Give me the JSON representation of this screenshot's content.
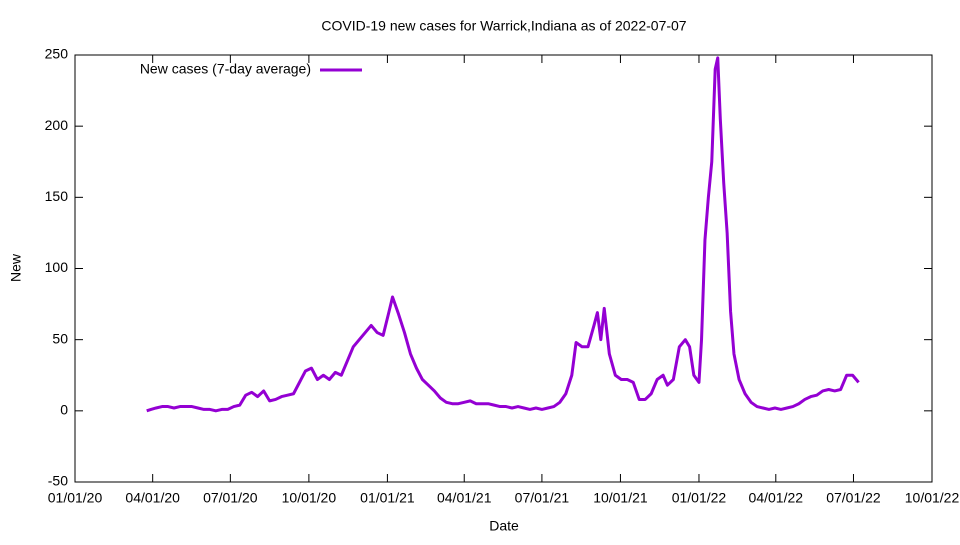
{
  "chart_data": {
    "type": "line",
    "title": "COVID-19 new cases for Warrick,Indiana as of 2022-07-07",
    "xlabel": "Date",
    "ylabel": "New",
    "legend": "top-left",
    "xlim": [
      "2020-01-01",
      "2022-10-01"
    ],
    "xticks": [
      {
        "value": "2020-01-01",
        "label": "01/01/20"
      },
      {
        "value": "2020-04-01",
        "label": "04/01/20"
      },
      {
        "value": "2020-07-01",
        "label": "07/01/20"
      },
      {
        "value": "2020-10-01",
        "label": "10/01/20"
      },
      {
        "value": "2021-01-01",
        "label": "01/01/21"
      },
      {
        "value": "2021-04-01",
        "label": "04/01/21"
      },
      {
        "value": "2021-07-01",
        "label": "07/01/21"
      },
      {
        "value": "2021-10-01",
        "label": "10/01/21"
      },
      {
        "value": "2022-01-01",
        "label": "01/01/22"
      },
      {
        "value": "2022-04-01",
        "label": "04/01/22"
      },
      {
        "value": "2022-07-01",
        "label": "07/01/22"
      },
      {
        "value": "2022-10-01",
        "label": "10/01/22"
      }
    ],
    "ylim": [
      -50,
      250
    ],
    "yticks": [
      -50,
      0,
      50,
      100,
      150,
      200,
      250
    ],
    "x": [
      "2020-03-25",
      "2020-03-30",
      "2020-04-05",
      "2020-04-12",
      "2020-04-19",
      "2020-04-26",
      "2020-05-03",
      "2020-05-10",
      "2020-05-17",
      "2020-05-24",
      "2020-05-31",
      "2020-06-07",
      "2020-06-14",
      "2020-06-21",
      "2020-06-28",
      "2020-07-05",
      "2020-07-12",
      "2020-07-19",
      "2020-07-26",
      "2020-08-02",
      "2020-08-09",
      "2020-08-16",
      "2020-08-23",
      "2020-08-30",
      "2020-09-06",
      "2020-09-13",
      "2020-09-20",
      "2020-09-27",
      "2020-10-04",
      "2020-10-11",
      "2020-10-18",
      "2020-10-25",
      "2020-11-01",
      "2020-11-08",
      "2020-11-15",
      "2020-11-22",
      "2020-11-29",
      "2020-12-06",
      "2020-12-13",
      "2020-12-20",
      "2020-12-27",
      "2021-01-03",
      "2021-01-07",
      "2021-01-14",
      "2021-01-21",
      "2021-01-28",
      "2021-02-04",
      "2021-02-11",
      "2021-02-18",
      "2021-02-25",
      "2021-03-04",
      "2021-03-11",
      "2021-03-18",
      "2021-03-25",
      "2021-04-01",
      "2021-04-08",
      "2021-04-15",
      "2021-04-22",
      "2021-04-29",
      "2021-05-06",
      "2021-05-13",
      "2021-05-20",
      "2021-05-27",
      "2021-06-03",
      "2021-06-10",
      "2021-06-17",
      "2021-06-24",
      "2021-07-01",
      "2021-07-08",
      "2021-07-15",
      "2021-07-22",
      "2021-07-29",
      "2021-08-05",
      "2021-08-10",
      "2021-08-17",
      "2021-08-24",
      "2021-08-31",
      "2021-09-04",
      "2021-09-08",
      "2021-09-12",
      "2021-09-18",
      "2021-09-25",
      "2021-10-02",
      "2021-10-09",
      "2021-10-16",
      "2021-10-23",
      "2021-10-30",
      "2021-11-06",
      "2021-11-13",
      "2021-11-20",
      "2021-11-25",
      "2021-12-02",
      "2021-12-09",
      "2021-12-16",
      "2021-12-21",
      "2021-12-26",
      "2022-01-01",
      "2022-01-04",
      "2022-01-08",
      "2022-01-12",
      "2022-01-16",
      "2022-01-20",
      "2022-01-23",
      "2022-01-26",
      "2022-01-30",
      "2022-02-03",
      "2022-02-07",
      "2022-02-11",
      "2022-02-17",
      "2022-02-24",
      "2022-03-03",
      "2022-03-10",
      "2022-03-17",
      "2022-03-24",
      "2022-03-31",
      "2022-04-07",
      "2022-04-14",
      "2022-04-21",
      "2022-04-28",
      "2022-05-05",
      "2022-05-12",
      "2022-05-19",
      "2022-05-26",
      "2022-06-02",
      "2022-06-09",
      "2022-06-16",
      "2022-06-23",
      "2022-06-30",
      "2022-07-07"
    ],
    "series": [
      {
        "name": "New cases (7-day average)",
        "color": "#9400d3",
        "values": [
          0,
          1,
          2,
          3,
          3,
          2,
          3,
          3,
          3,
          2,
          1,
          1,
          0,
          1,
          1,
          3,
          4,
          11,
          13,
          10,
          14,
          7,
          8,
          10,
          11,
          12,
          20,
          28,
          30,
          22,
          25,
          22,
          27,
          25,
          35,
          45,
          50,
          55,
          60,
          55,
          53,
          70,
          80,
          68,
          55,
          40,
          30,
          22,
          18,
          14,
          9,
          6,
          5,
          5,
          6,
          7,
          5,
          5,
          5,
          4,
          3,
          3,
          2,
          3,
          2,
          1,
          2,
          1,
          2,
          3,
          6,
          12,
          25,
          48,
          45,
          45,
          60,
          69,
          50,
          72,
          40,
          25,
          22,
          22,
          20,
          8,
          8,
          12,
          22,
          25,
          18,
          22,
          45,
          50,
          45,
          25,
          20,
          50,
          120,
          150,
          175,
          240,
          248,
          205,
          160,
          125,
          70,
          40,
          22,
          12,
          6,
          3,
          2,
          1,
          2,
          1,
          2,
          3,
          5,
          8,
          10,
          11,
          14,
          15,
          14,
          15,
          25,
          25,
          20
        ]
      }
    ]
  }
}
